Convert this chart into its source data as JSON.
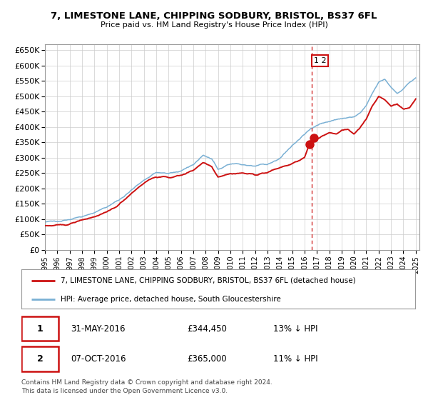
{
  "title": "7, LIMESTONE LANE, CHIPPING SODBURY, BRISTOL, BS37 6FL",
  "subtitle": "Price paid vs. HM Land Registry's House Price Index (HPI)",
  "ylim": [
    0,
    670000
  ],
  "yticks": [
    0,
    50000,
    100000,
    150000,
    200000,
    250000,
    300000,
    350000,
    400000,
    450000,
    500000,
    550000,
    600000,
    650000
  ],
  "sale1_date": 2016.417,
  "sale1_price": 344450,
  "sale2_date": 2016.75,
  "sale2_price": 365000,
  "vline_x": 2016.583,
  "hpi_color": "#7ab0d4",
  "price_color": "#cc1111",
  "marker_color": "#cc1111",
  "vline_color": "#cc1111",
  "grid_color": "#cccccc",
  "background_color": "#ffffff",
  "legend_line1": "7, LIMESTONE LANE, CHIPPING SODBURY, BRISTOL, BS37 6FL (detached house)",
  "legend_line2": "HPI: Average price, detached house, South Gloucestershire",
  "table_row1": [
    "1",
    "31-MAY-2016",
    "£344,450",
    "13% ↓ HPI"
  ],
  "table_row2": [
    "2",
    "07-OCT-2016",
    "£365,000",
    "11% ↓ HPI"
  ],
  "footnote": "Contains HM Land Registry data © Crown copyright and database right 2024.\nThis data is licensed under the Open Government Licence v3.0."
}
